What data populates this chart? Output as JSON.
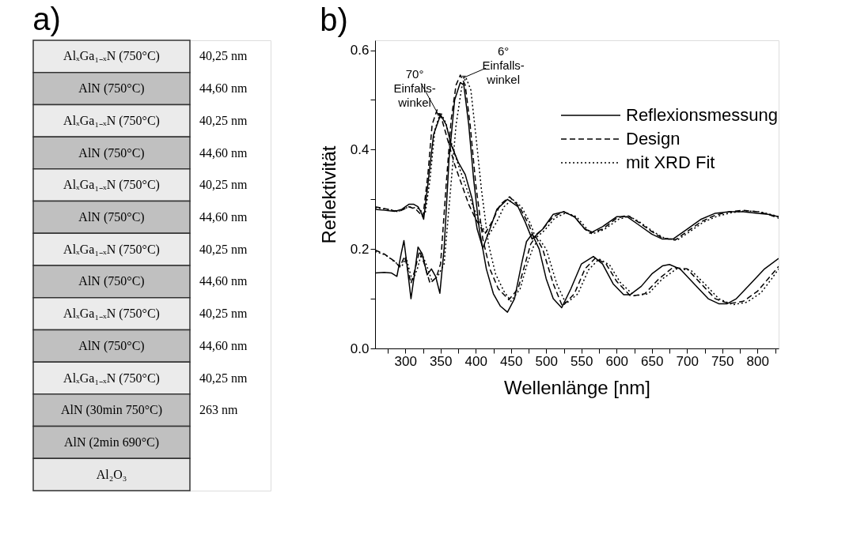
{
  "chart_data": [
    {
      "type": "other",
      "title": "a)",
      "y_categories": [
        "AlₓGa₁₋ₓN (750°C)",
        "AlN (750°C)",
        "AlₓGa₁₋ₓN (750°C)",
        "AlN (750°C)",
        "AlₓGa₁₋ₓN (750°C)",
        "AlN (750°C)",
        "AlₓGa₁₋ₓN (750°C)",
        "AlN (750°C)",
        "AlₓGa₁₋ₓN (750°C)",
        "AlN (750°C)",
        "AlₓGa₁₋ₓN (750°C)",
        "AlN (30min 750°C)",
        "AlN (2min 690°C)",
        "Al₂O₃"
      ],
      "y2_categories": [
        "40,25 nm",
        "44,60 nm",
        "40,25 nm",
        "44,60 nm",
        "40,25 nm",
        "44,60 nm",
        "40,25 nm",
        "44,60 nm",
        "40,25 nm",
        "44,60 nm",
        "40,25 nm",
        "263 nm",
        null,
        null
      ],
      "colors": [
        "#ebebeb",
        "#c0c0c0",
        "#ebebeb",
        "#c0c0c0",
        "#ebebeb",
        "#c0c0c0",
        "#ebebeb",
        "#c0c0c0",
        "#ebebeb",
        "#c0c0c0",
        "#ebebeb",
        "#c0c0c0",
        "#c0c0c0",
        "#e8e8e8"
      ]
    },
    {
      "type": "line",
      "title": "b)",
      "xlabel": "Wellenlänge [nm]",
      "ylabel": "Reflektivität",
      "xlim": [
        257,
        830
      ],
      "ylim": [
        0,
        0.62
      ],
      "xticks": [
        {
          "value": 275,
          "label": null
        },
        300,
        {
          "value": 325,
          "label": null
        },
        350,
        {
          "value": 375,
          "label": null
        },
        400,
        {
          "value": 425,
          "label": null
        },
        450,
        {
          "value": 475,
          "label": null
        },
        500,
        {
          "value": 525,
          "label": null
        },
        550,
        {
          "value": 575,
          "label": null
        },
        600,
        {
          "value": 625,
          "label": null
        },
        650,
        {
          "value": 675,
          "label": null
        },
        700,
        {
          "value": 725,
          "label": null
        },
        750,
        {
          "value": 775,
          "label": null
        },
        800,
        {
          "value": 825,
          "label": null
        }
      ],
      "yticks": [
        {
          "value": 0,
          "label": "0.0"
        },
        {
          "value": 0.1,
          "label": null
        },
        {
          "value": 0.2,
          "label": "0.2"
        },
        {
          "value": 0.3,
          "label": null
        },
        {
          "value": 0.4,
          "label": "0.4"
        },
        {
          "value": 0.5,
          "label": null
        },
        {
          "value": 0.6,
          "label": "0.6"
        }
      ],
      "grid": false,
      "legend": "top right",
      "marker": "none",
      "annotations": [
        {
          "text": "70°\nEinfalls-\nwinkel",
          "x": 347,
          "y": 0.47
        },
        {
          "text": "6°\nEinfalls-\nwinkel",
          "x": 383,
          "y": 0.545
        }
      ],
      "series": [
        {
          "name": "Reflexionsmessung",
          "color": "#000000",
          "line_style": "solid",
          "x": [
            257,
            270,
            285,
            295,
            305,
            312,
            318,
            322,
            326,
            332,
            340,
            350,
            358,
            365,
            375,
            385,
            395,
            402,
            410,
            420,
            430,
            445,
            460,
            470,
            480,
            495,
            510,
            525,
            540,
            555,
            565,
            580,
            600,
            615,
            630,
            650,
            665,
            680,
            700,
            720,
            740,
            760,
            780,
            800,
            815,
            830
          ],
          "values": [
            0.28,
            0.278,
            0.276,
            0.28,
            0.29,
            0.29,
            0.285,
            0.275,
            0.26,
            0.33,
            0.43,
            0.47,
            0.45,
            0.41,
            0.375,
            0.35,
            0.3,
            0.24,
            0.202,
            0.24,
            0.28,
            0.3,
            0.285,
            0.255,
            0.22,
            0.24,
            0.27,
            0.275,
            0.265,
            0.24,
            0.234,
            0.245,
            0.265,
            0.265,
            0.25,
            0.23,
            0.22,
            0.22,
            0.24,
            0.26,
            0.272,
            0.275,
            0.275,
            0.272,
            0.27,
            0.265
          ]
        },
        {
          "color": "#000000",
          "line_style": "solid",
          "x": [
            257,
            270,
            280,
            288,
            294,
            298,
            303,
            308,
            313,
            318,
            324,
            331,
            337,
            343,
            349,
            355,
            362,
            370,
            378,
            383,
            390,
            397,
            405,
            415,
            425,
            435,
            445,
            455,
            465,
            472,
            480,
            490,
            500,
            510,
            522,
            535,
            550,
            567,
            580,
            595,
            610,
            619,
            635,
            650,
            665,
            675,
            690,
            710,
            730,
            745,
            757,
            770,
            790,
            810,
            830
          ],
          "values": [
            0.152,
            0.153,
            0.152,
            0.145,
            0.19,
            0.217,
            0.16,
            0.1,
            0.15,
            0.204,
            0.19,
            0.148,
            0.16,
            0.145,
            0.111,
            0.2,
            0.38,
            0.5,
            0.535,
            0.53,
            0.45,
            0.34,
            0.24,
            0.16,
            0.11,
            0.085,
            0.073,
            0.1,
            0.17,
            0.215,
            0.23,
            0.2,
            0.14,
            0.1,
            0.082,
            0.12,
            0.17,
            0.185,
            0.17,
            0.13,
            0.108,
            0.108,
            0.125,
            0.15,
            0.166,
            0.169,
            0.16,
            0.13,
            0.1,
            0.09,
            0.09,
            0.1,
            0.13,
            0.16,
            0.181
          ]
        },
        {
          "name": "Design",
          "color": "#000000",
          "line_style": "dashed",
          "x": [
            257,
            275,
            290,
            305,
            315,
            325,
            332,
            338,
            345,
            352,
            360,
            370,
            380,
            390,
            400,
            413,
            425,
            435,
            448,
            462,
            475,
            482,
            495,
            510,
            525,
            540,
            555,
            562,
            580,
            600,
            615,
            630,
            650,
            665,
            683,
            700,
            720,
            740,
            760,
            780,
            800,
            815,
            830
          ],
          "values": [
            0.285,
            0.28,
            0.275,
            0.285,
            0.28,
            0.265,
            0.35,
            0.45,
            0.48,
            0.46,
            0.42,
            0.37,
            0.33,
            0.29,
            0.26,
            0.23,
            0.26,
            0.29,
            0.305,
            0.285,
            0.25,
            0.225,
            0.24,
            0.265,
            0.275,
            0.265,
            0.24,
            0.232,
            0.24,
            0.262,
            0.268,
            0.255,
            0.235,
            0.222,
            0.218,
            0.235,
            0.255,
            0.268,
            0.275,
            0.278,
            0.275,
            0.27,
            0.262
          ]
        },
        {
          "color": "#000000",
          "line_style": "dashed",
          "x": [
            257,
            270,
            285,
            292,
            299,
            308,
            314,
            320,
            327,
            335,
            344,
            350,
            358,
            365,
            372,
            378,
            385,
            392,
            400,
            410,
            420,
            432,
            447,
            460,
            470,
            478,
            485,
            495,
            510,
            523,
            540,
            555,
            570,
            585,
            600,
            620,
            640,
            660,
            680,
            700,
            720,
            740,
            760,
            780,
            800,
            815,
            830
          ],
          "values": [
            0.198,
            0.19,
            0.175,
            0.164,
            0.185,
            0.131,
            0.16,
            0.196,
            0.17,
            0.131,
            0.143,
            0.17,
            0.33,
            0.46,
            0.53,
            0.55,
            0.53,
            0.45,
            0.33,
            0.22,
            0.16,
            0.12,
            0.098,
            0.12,
            0.17,
            0.21,
            0.225,
            0.2,
            0.13,
            0.085,
            0.11,
            0.16,
            0.182,
            0.17,
            0.135,
            0.105,
            0.11,
            0.14,
            0.163,
            0.16,
            0.13,
            0.1,
            0.09,
            0.095,
            0.115,
            0.14,
            0.165
          ]
        },
        {
          "name": "mit XRD Fit",
          "color": "#000000",
          "line_style": "dotted",
          "x": [
            257,
            275,
            290,
            305,
            318,
            328,
            335,
            342,
            350,
            357,
            365,
            375,
            385,
            395,
            405,
            417,
            430,
            440,
            452,
            465,
            478,
            485,
            498,
            512,
            528,
            543,
            558,
            565,
            583,
            603,
            618,
            633,
            653,
            668,
            686,
            703,
            723,
            743,
            763,
            783,
            803,
            818,
            830
          ],
          "values": [
            0.283,
            0.28,
            0.276,
            0.285,
            0.282,
            0.27,
            0.34,
            0.44,
            0.475,
            0.455,
            0.415,
            0.37,
            0.33,
            0.29,
            0.255,
            0.225,
            0.255,
            0.285,
            0.3,
            0.285,
            0.25,
            0.222,
            0.238,
            0.262,
            0.273,
            0.265,
            0.24,
            0.23,
            0.24,
            0.26,
            0.266,
            0.254,
            0.234,
            0.222,
            0.218,
            0.234,
            0.254,
            0.266,
            0.273,
            0.277,
            0.275,
            0.27,
            0.265
          ]
        },
        {
          "color": "#000000",
          "line_style": "dotted",
          "x": [
            257,
            272,
            287,
            295,
            301,
            310,
            317,
            323,
            330,
            338,
            346,
            355,
            363,
            372,
            380,
            386,
            393,
            400,
            408,
            418,
            428,
            440,
            450,
            463,
            473,
            482,
            490,
            500,
            515,
            528,
            545,
            560,
            575,
            590,
            605,
            625,
            645,
            665,
            685,
            705,
            725,
            745,
            765,
            785,
            805,
            820,
            830
          ],
          "values": [
            0.195,
            0.188,
            0.172,
            0.165,
            0.183,
            0.135,
            0.16,
            0.192,
            0.168,
            0.135,
            0.145,
            0.17,
            0.3,
            0.45,
            0.525,
            0.545,
            0.52,
            0.43,
            0.32,
            0.21,
            0.15,
            0.115,
            0.095,
            0.12,
            0.17,
            0.205,
            0.22,
            0.2,
            0.13,
            0.09,
            0.11,
            0.158,
            0.18,
            0.168,
            0.133,
            0.106,
            0.11,
            0.14,
            0.16,
            0.158,
            0.13,
            0.1,
            0.088,
            0.093,
            0.112,
            0.14,
            0.16
          ]
        }
      ]
    }
  ]
}
